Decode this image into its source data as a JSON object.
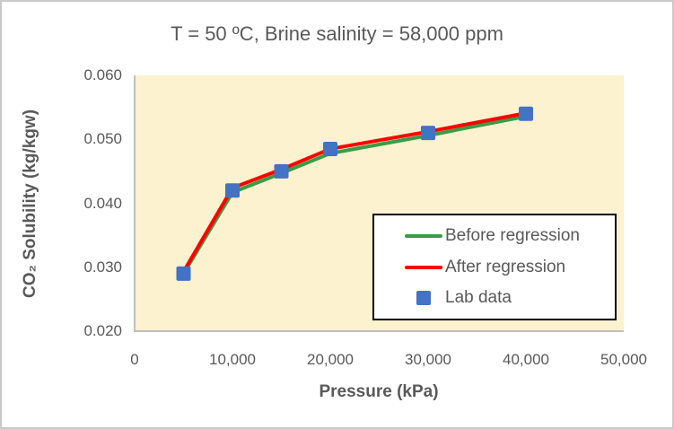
{
  "window": {
    "background": "#ffffff",
    "border_color": "#c9c9c9"
  },
  "colors": {
    "text": "#595959",
    "axis_line": "#bfbfbf",
    "plot_background": "#fcf2cf",
    "legend_border": "#000000",
    "legend_background": "#ffffff"
  },
  "chart_data": {
    "type": "line",
    "title": "T = 50 ºC, Brine salinity = 58,000 ppm",
    "xlabel": "Pressure (kPa)",
    "ylabel": "CO₂ Solubility (kg/kgw)",
    "xlim": [
      0,
      50000
    ],
    "ylim": [
      0.02,
      0.06
    ],
    "grid": false,
    "x_ticks": {
      "values": [
        0,
        10000,
        20000,
        30000,
        40000,
        50000
      ],
      "labels": [
        "0",
        "10,000",
        "20,000",
        "30,000",
        "40,000",
        "50,000"
      ]
    },
    "y_ticks": {
      "values": [
        0.02,
        0.03,
        0.04,
        0.05,
        0.06
      ],
      "labels": [
        "0.020",
        "0.030",
        "0.040",
        "0.050",
        "0.060"
      ]
    },
    "x": [
      5000,
      10000,
      15000,
      20000,
      30000,
      40000
    ],
    "series": [
      {
        "name": "Before regression",
        "type": "line",
        "color": "#3c9b46",
        "values": [
          0.029,
          0.0417,
          0.0447,
          0.0478,
          0.0506,
          0.0536
        ]
      },
      {
        "name": "After regression",
        "type": "line",
        "color": "#ff0000",
        "values": [
          0.0293,
          0.0424,
          0.0453,
          0.0485,
          0.0512,
          0.0541
        ]
      },
      {
        "name": "Lab data",
        "type": "scatter",
        "marker": "square",
        "color": "#4472c4",
        "values": [
          0.029,
          0.042,
          0.045,
          0.0485,
          0.051,
          0.054
        ]
      }
    ],
    "legend": {
      "position": "inside-bottom-right",
      "entries": [
        "Before regression",
        "After regression",
        "Lab data"
      ]
    }
  }
}
